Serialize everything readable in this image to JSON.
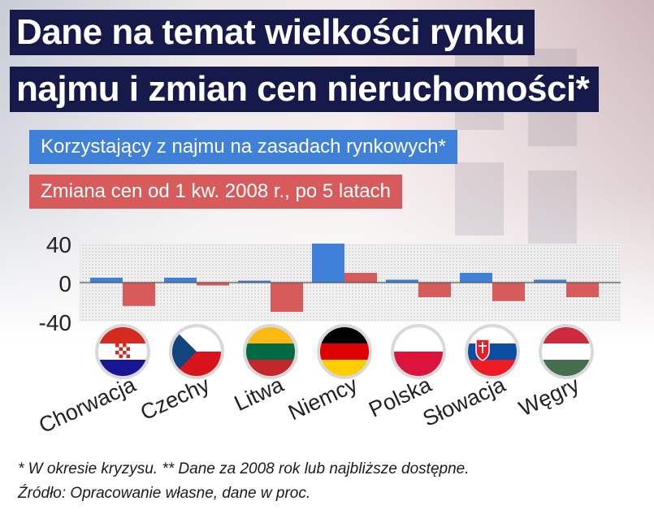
{
  "title_line1": "Dane na temat wielkości rynku",
  "title_line2": "najmu i zmian cen nieruchomości*",
  "colors": {
    "title_bg": "#151a4a",
    "series_a": "#3f80d8",
    "series_b": "#d85b5b"
  },
  "chart_data": {
    "type": "bar",
    "categories": [
      "Chorwacja",
      "Czechy",
      "Litwa",
      "Niemcy",
      "Polska",
      "Słowacja",
      "Węgry"
    ],
    "series": [
      {
        "name": "Korzystający z najmu na zasadach rynkowych*",
        "color": "#3f80d8",
        "values": [
          5,
          5,
          2,
          40,
          3,
          10,
          3
        ]
      },
      {
        "name": "Zmiana cen od 1 kw. 2008 r., po 5 latach",
        "color": "#d85b5b",
        "values": [
          -24,
          -3,
          -30,
          10,
          -15,
          -19,
          -15
        ]
      }
    ],
    "yticks": [
      "40",
      "0",
      "-40"
    ],
    "ylim": [
      -40,
      40
    ],
    "flag_icons": [
      "croatia-flag-icon",
      "czech-flag-icon",
      "lithuania-flag-icon",
      "germany-flag-icon",
      "poland-flag-icon",
      "slovakia-flag-icon",
      "hungary-flag-icon"
    ]
  },
  "footnote_line1": "* W okresie kryzysu. ** Dane za 2008 rok lub najbliższe dostępne.",
  "footnote_line2": "Źródło: Opracowanie własne, dane w proc."
}
